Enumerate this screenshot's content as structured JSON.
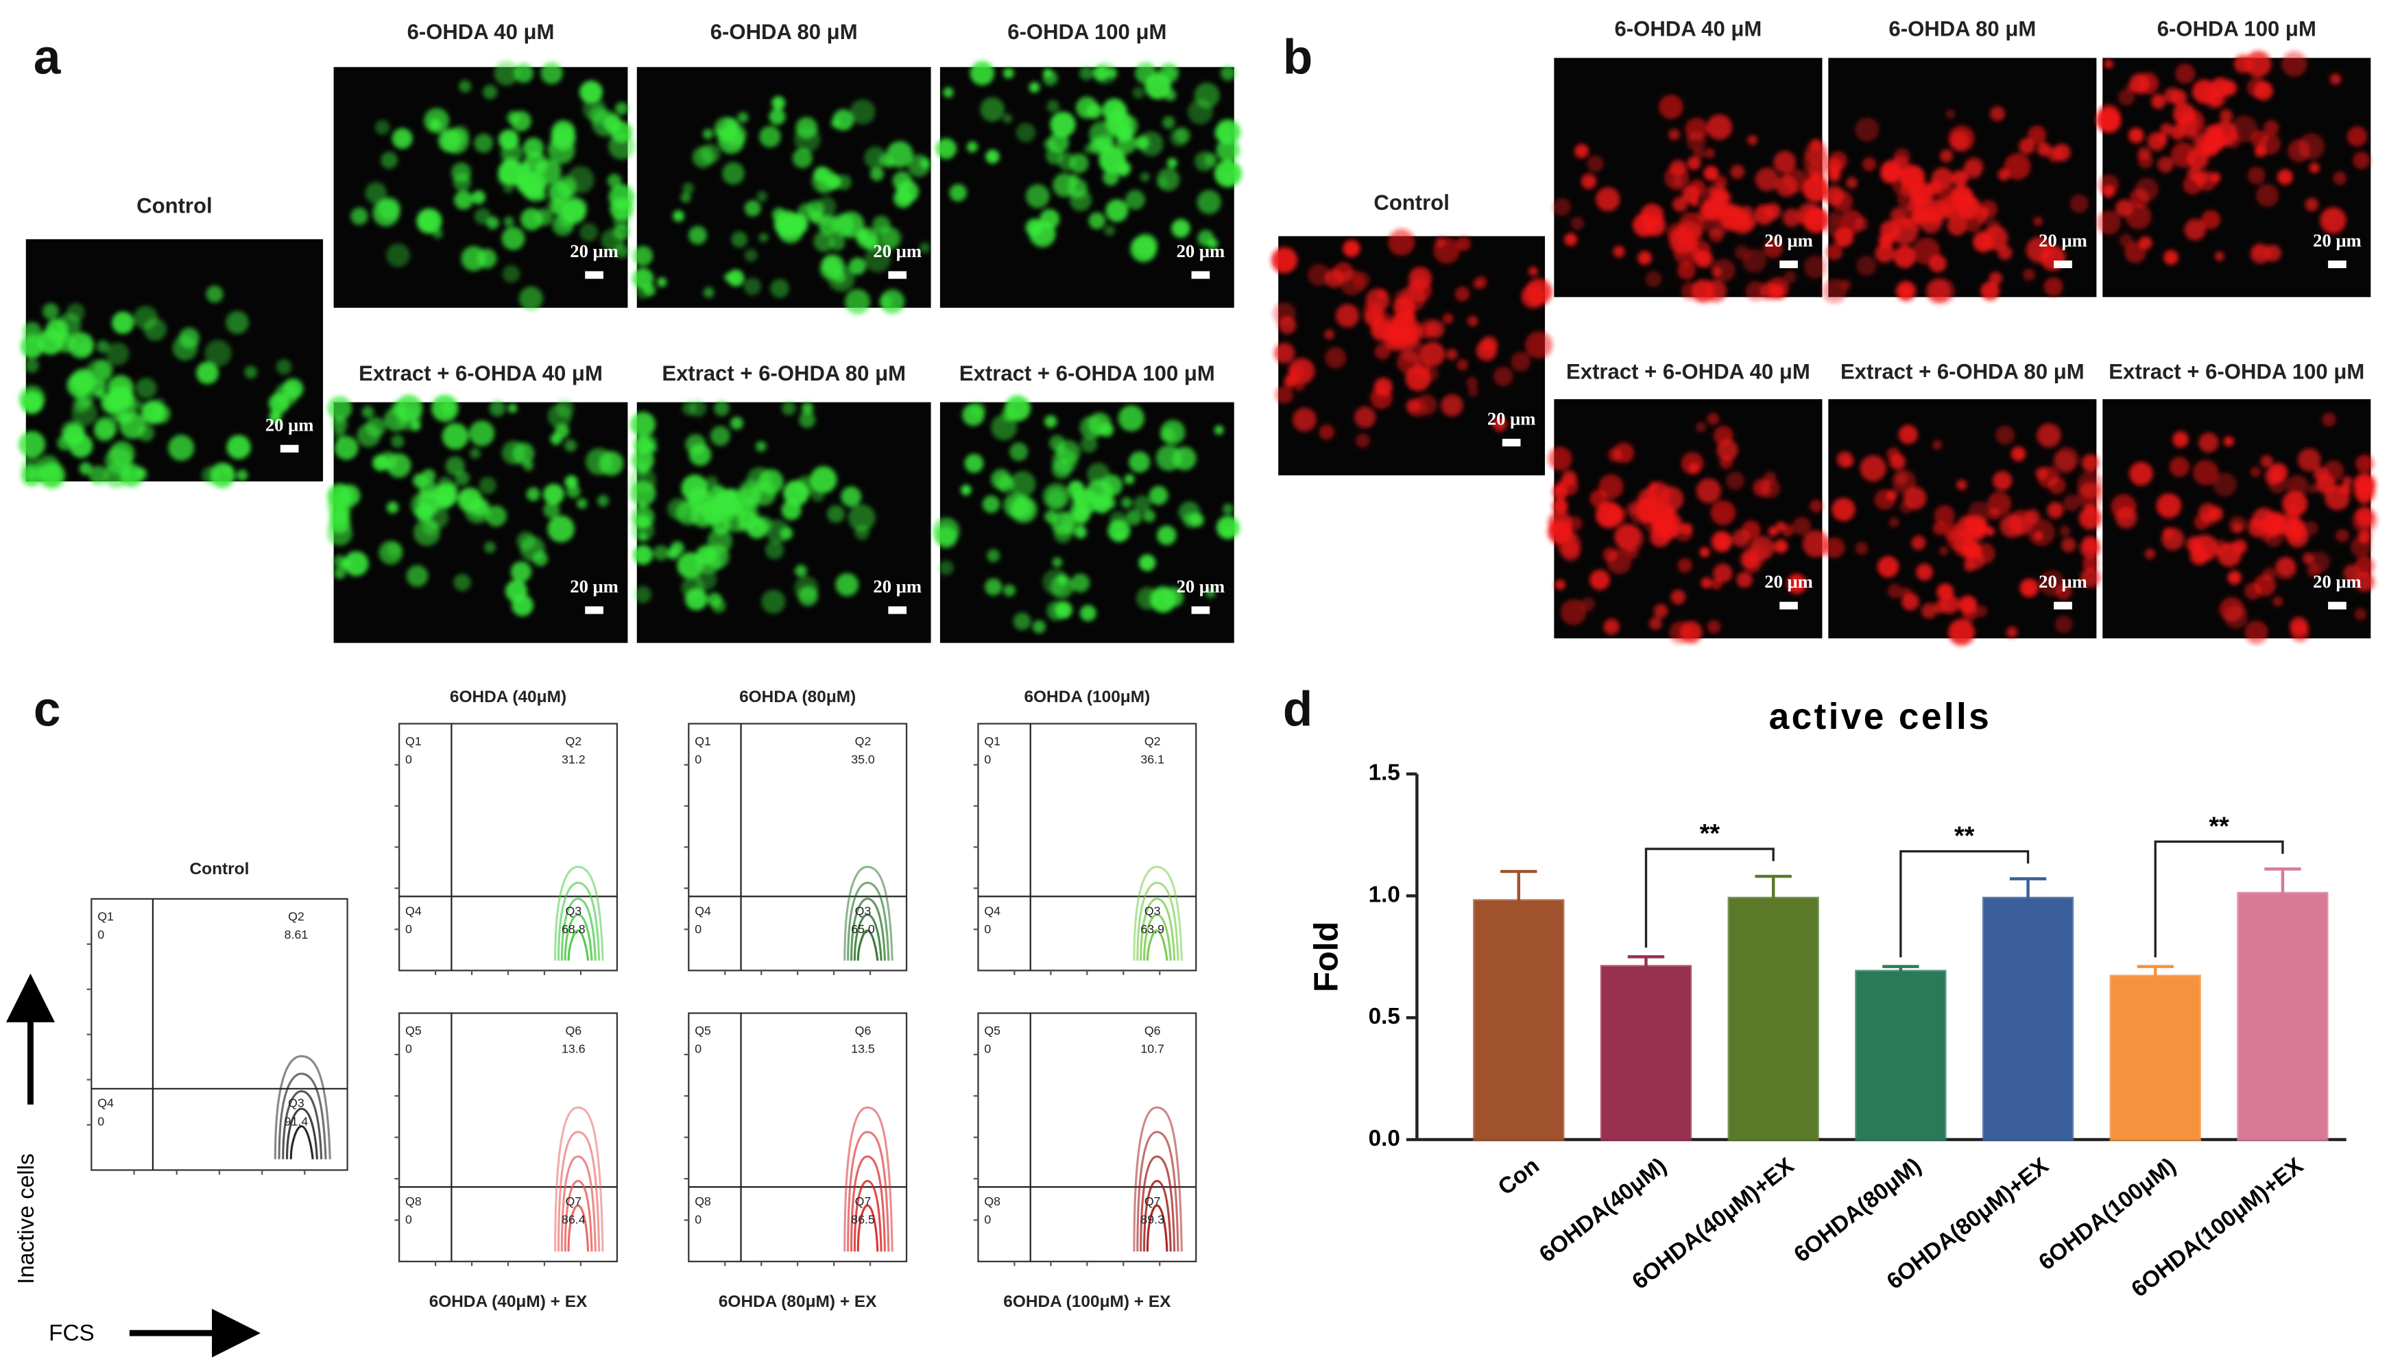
{
  "panels": {
    "a": {
      "letter": "a",
      "color": "#39e83a",
      "control": {
        "title": "Control",
        "scale": "20 μm"
      },
      "images": [
        {
          "title": "6-OHDA 40 μM",
          "scale": "20 μm"
        },
        {
          "title": "6-OHDA 80 μM",
          "scale": "20 μm"
        },
        {
          "title": "6-OHDA 100 μM",
          "scale": "20 μm"
        },
        {
          "title": "Extract + 6-OHDA 40 μM",
          "scale": "20 μm"
        },
        {
          "title": "Extract + 6-OHDA 80 μM",
          "scale": "20 μm"
        },
        {
          "title": "Extract + 6-OHDA 100 μM",
          "scale": "20 μm"
        }
      ]
    },
    "b": {
      "letter": "b",
      "color": "#f01818",
      "control": {
        "title": "Control",
        "scale": "20 μm"
      },
      "images": [
        {
          "title": "6-OHDA 40 μM",
          "scale": "20 μm"
        },
        {
          "title": "6-OHDA 80 μM",
          "scale": "20 μm"
        },
        {
          "title": "6-OHDA 100 μM",
          "scale": "20 μm"
        },
        {
          "title": "Extract + 6-OHDA 40 μM",
          "scale": "20 μm"
        },
        {
          "title": "Extract + 6-OHDA 80 μM",
          "scale": "20 μm"
        },
        {
          "title": "Extract + 6-OHDA 100 μM",
          "scale": "20 μm"
        }
      ]
    },
    "c": {
      "letter": "c",
      "y_label": "Inactive cells",
      "x_label": "FCS",
      "plots": [
        {
          "title": "Control",
          "color": "#111111",
          "quadrants": [
            {
              "label": "Q1",
              "value": "0"
            },
            {
              "label": "Q2",
              "value": "8.61"
            },
            {
              "label": "Q4",
              "value": "0"
            },
            {
              "label": "Q3",
              "value": "91.4"
            }
          ]
        },
        {
          "title": "6OHDA (40μM)",
          "color": "#3cc83c",
          "quadrants": [
            {
              "label": "Q1",
              "value": "0"
            },
            {
              "label": "Q2",
              "value": "31.2"
            },
            {
              "label": "Q4",
              "value": "0"
            },
            {
              "label": "Q3",
              "value": "68.8"
            }
          ]
        },
        {
          "title": "6OHDA (80μM)",
          "color": "#1e6e1e",
          "quadrants": [
            {
              "label": "Q1",
              "value": "0"
            },
            {
              "label": "Q2",
              "value": "35.0"
            },
            {
              "label": "Q4",
              "value": "0"
            },
            {
              "label": "Q3",
              "value": "65.0"
            }
          ]
        },
        {
          "title": "6OHDA (100μM)",
          "color": "#6cc83c",
          "quadrants": [
            {
              "label": "Q1",
              "value": "0"
            },
            {
              "label": "Q2",
              "value": "36.1"
            },
            {
              "label": "Q4",
              "value": "0"
            },
            {
              "label": "Q3",
              "value": "63.9"
            }
          ]
        },
        {
          "title": "6OHDA (40μM) + EX",
          "color": "#e85a5a",
          "quadrants": [
            {
              "label": "Q5",
              "value": "0"
            },
            {
              "label": "Q6",
              "value": "13.6"
            },
            {
              "label": "Q8",
              "value": "0"
            },
            {
              "label": "Q7",
              "value": "86.4"
            }
          ]
        },
        {
          "title": "6OHDA (80μM) + EX",
          "color": "#d81e1e",
          "quadrants": [
            {
              "label": "Q5",
              "value": "0"
            },
            {
              "label": "Q6",
              "value": "13.5"
            },
            {
              "label": "Q8",
              "value": "0"
            },
            {
              "label": "Q7",
              "value": "86.5"
            }
          ]
        },
        {
          "title": "6OHDA (100μM) + EX",
          "color": "#a01010",
          "quadrants": [
            {
              "label": "Q5",
              "value": "0"
            },
            {
              "label": "Q6",
              "value": "10.7"
            },
            {
              "label": "Q8",
              "value": "0"
            },
            {
              "label": "Q7",
              "value": "89.3"
            }
          ]
        }
      ]
    }
  },
  "chart_data": {
    "type": "bar",
    "panel_label": "d",
    "title": "active cells",
    "y_label": "Fold",
    "categories": [
      "Con",
      "6OHDA(40μM)",
      "6OHDA(40μM)+EX",
      "6OHDA(80μM)",
      "6OHDA(80μM)+EX",
      "6OHDA(100μM)",
      "6OHDA(100μM)+EX"
    ],
    "values": [
      0.98,
      0.71,
      0.99,
      0.69,
      0.99,
      0.67,
      1.01
    ],
    "errors": [
      0.12,
      0.04,
      0.09,
      0.02,
      0.08,
      0.04,
      0.1
    ],
    "colors": [
      "#a0522d",
      "#98304f",
      "#5a7a2a",
      "#2a7a5a",
      "#3a5f9a",
      "#f5923e",
      "#d87a95"
    ],
    "significance": [
      "**",
      "**",
      "**"
    ],
    "ylim": [
      0,
      1.5
    ],
    "yticks": [
      {
        "value": 0,
        "label": "0.0"
      },
      {
        "value": 0.5,
        "label": "0.5"
      },
      {
        "value": 1,
        "label": "1.0"
      },
      {
        "value": 1.5,
        "label": "1.5"
      }
    ]
  }
}
